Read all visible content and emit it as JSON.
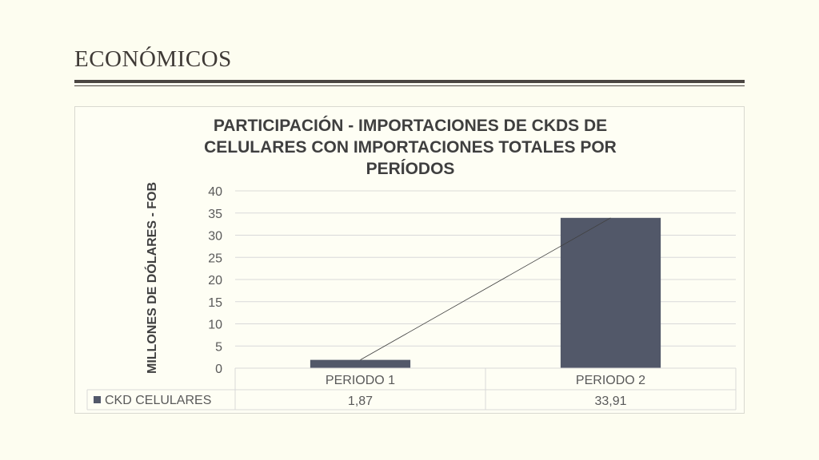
{
  "slide": {
    "title": "ECONÓMICOS"
  },
  "chart_data": {
    "type": "bar",
    "title": "PARTICIPACIÓN - IMPORTACIONES DE CKDS DE CELULARES CON IMPORTACIONES TOTALES POR PERÍODOS",
    "title_lines": [
      "PARTICIPACIÓN - IMPORTACIONES DE CKDS DE",
      "CELULARES CON IMPORTACIONES TOTALES POR",
      "PERÍODOS"
    ],
    "ylabel": "MILLONES DE DÓLARES - FOB",
    "xlabel": "",
    "categories": [
      "PERIODO 1",
      "PERIODO 2"
    ],
    "series": [
      {
        "name": "CKD CELULARES",
        "values": [
          1.87,
          33.91
        ],
        "value_labels": [
          "1,87",
          "33,91"
        ],
        "color": "#525869"
      }
    ],
    "ylim": [
      0,
      40
    ],
    "yticks": [
      0,
      5,
      10,
      15,
      20,
      25,
      30,
      35,
      40
    ],
    "ytick_labels": [
      "0",
      "5",
      "10",
      "15",
      "20",
      "25",
      "30",
      "35",
      "40"
    ],
    "grid": true,
    "trendline": true,
    "data_table": true,
    "colors": {
      "bar": "#525869",
      "grid": "#d9d9d9",
      "trendline": "#404040"
    }
  }
}
